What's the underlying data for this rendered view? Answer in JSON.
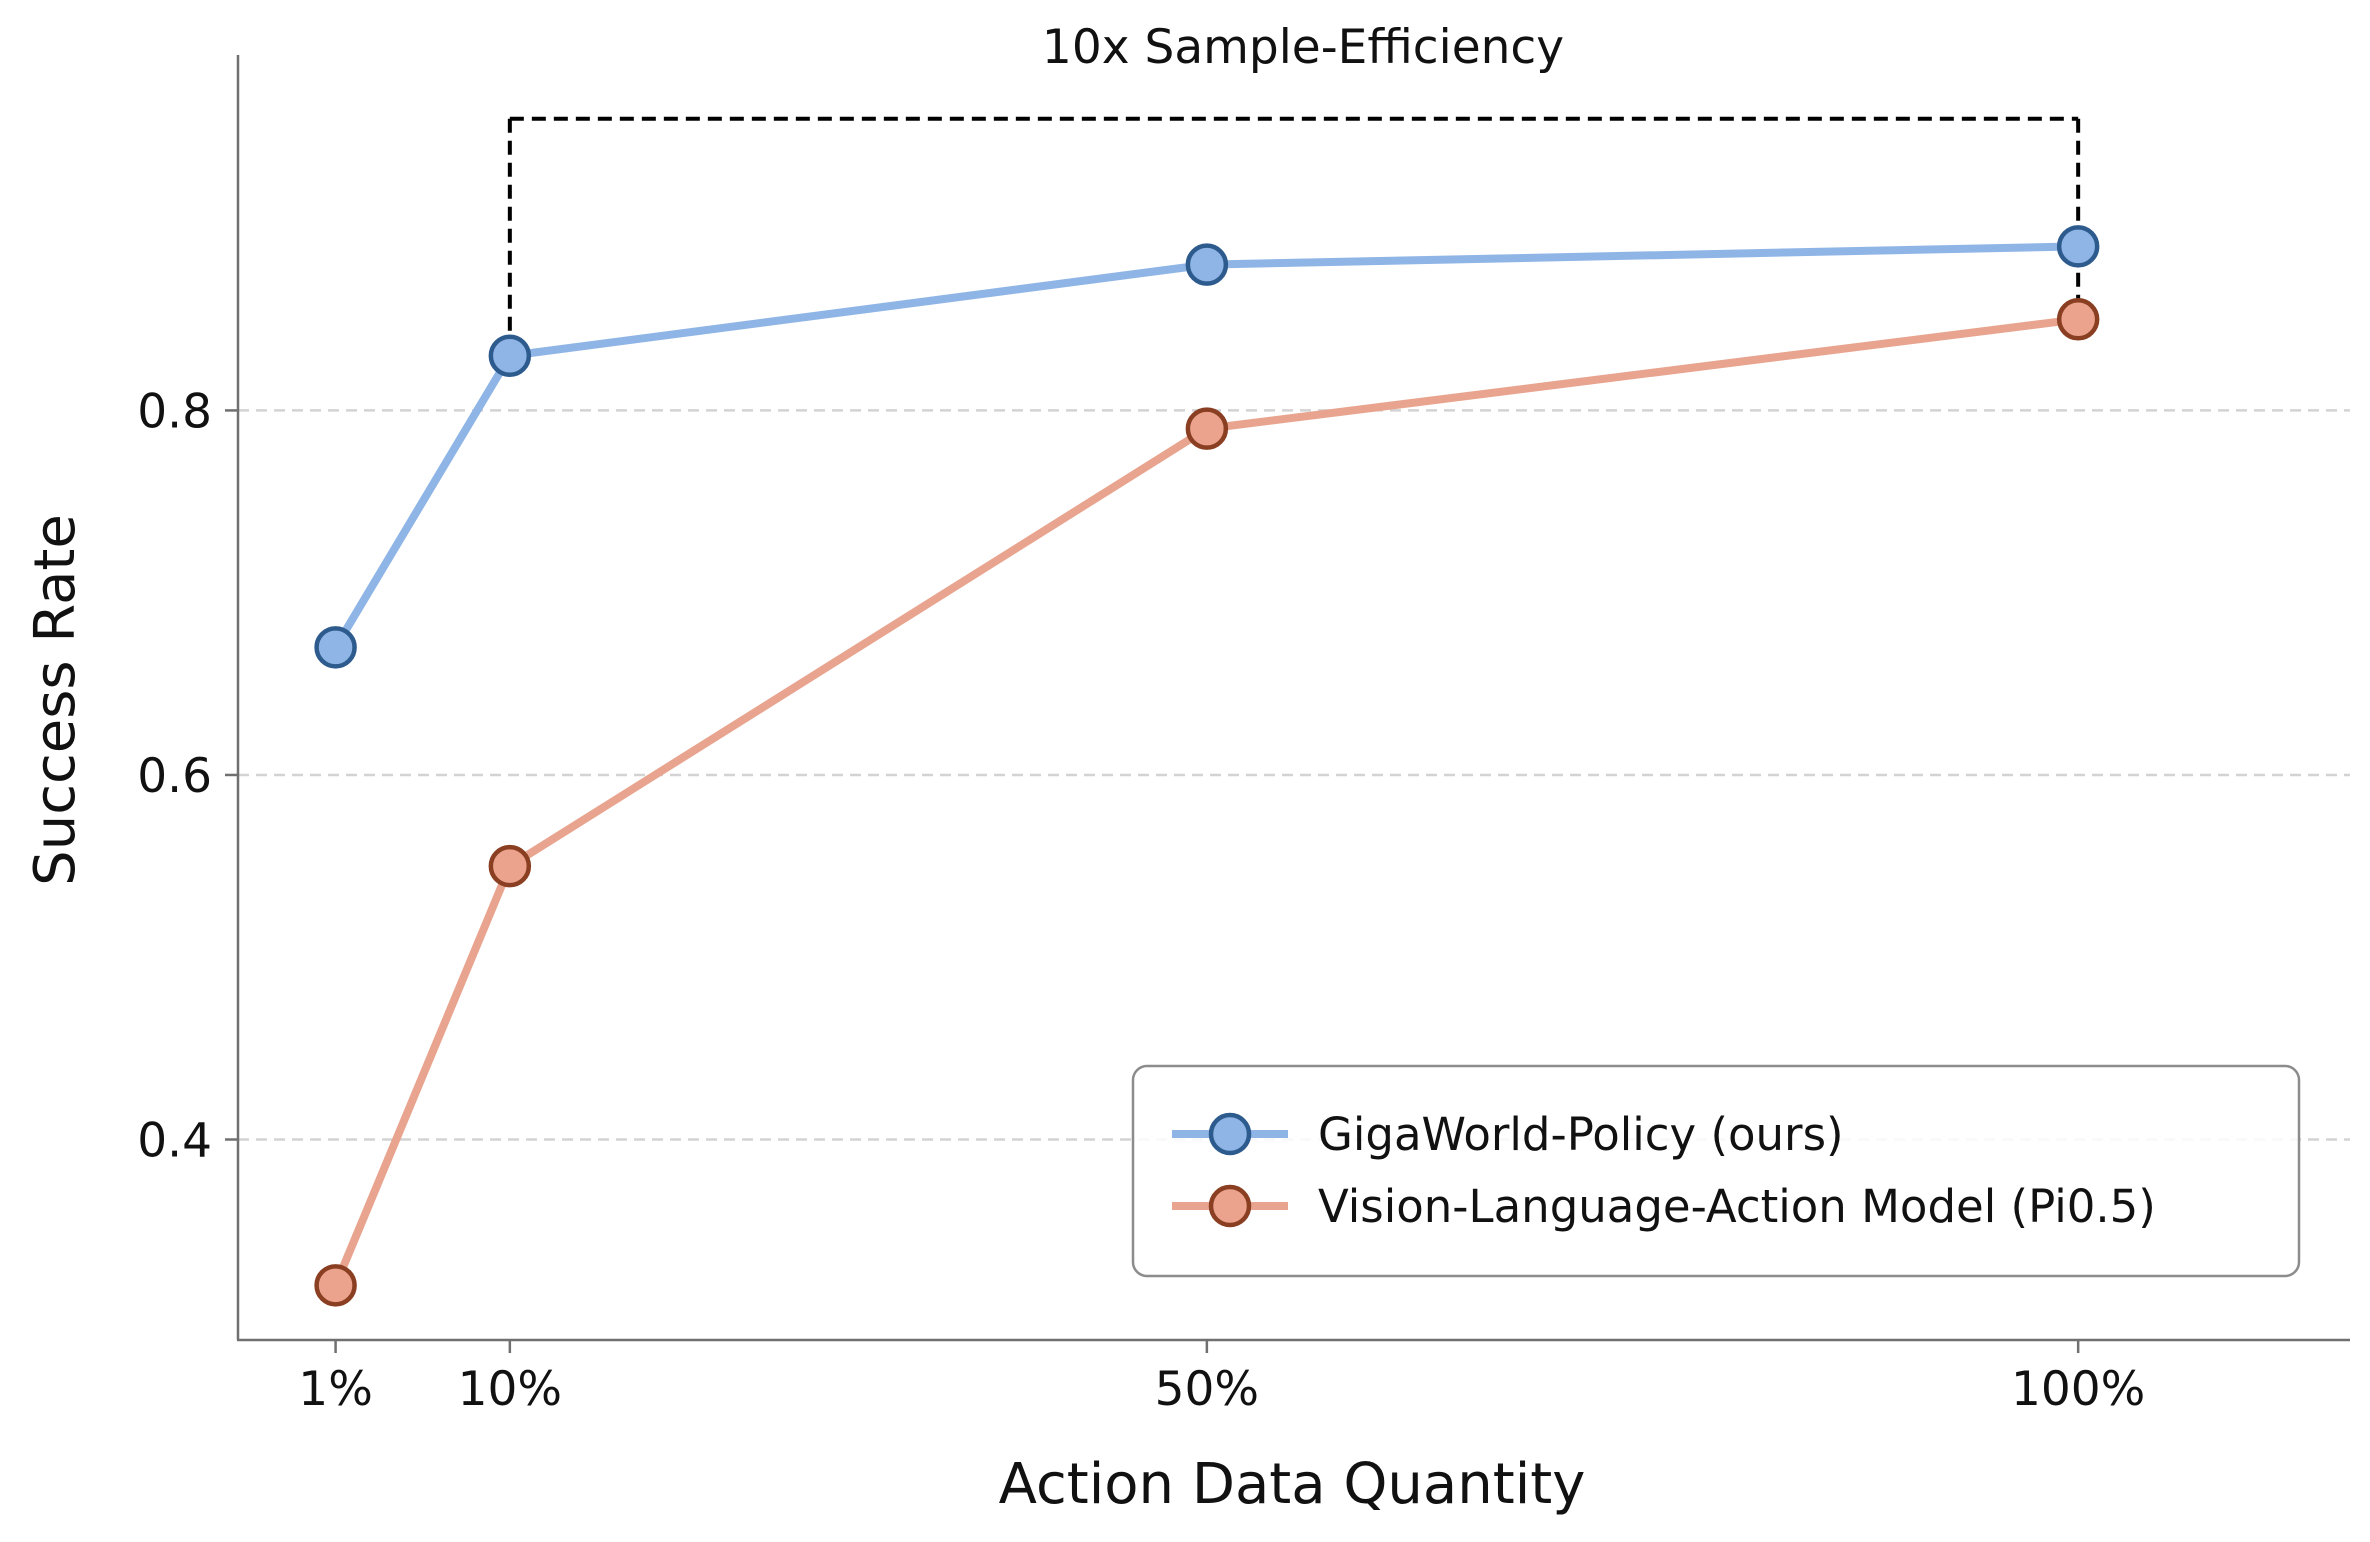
{
  "chart_data": {
    "type": "line",
    "title": "",
    "xlabel": "Action Data Quantity",
    "ylabel": "Success Rate",
    "x_ticks": [
      {
        "label": "1%",
        "pos": 0
      },
      {
        "label": "10%",
        "pos": 1
      },
      {
        "label": "50%",
        "pos": 5
      },
      {
        "label": "100%",
        "pos": 10
      }
    ],
    "y_ticks": [
      0.4,
      0.6,
      0.8
    ],
    "ylim": [
      0.29,
      0.995
    ],
    "xlim": [
      -0.56,
      11.56
    ],
    "grid": "horizontal dashed",
    "legend_position": "lower-right",
    "series": [
      {
        "name": "GigaWorld-Policy (ours)",
        "line_color": "#8fb5e6",
        "marker_face": "#8fb5e6",
        "marker_edge": "#2e5b8e",
        "points": [
          {
            "x": "1%",
            "y": 0.67
          },
          {
            "x": "10%",
            "y": 0.83
          },
          {
            "x": "50%",
            "y": 0.88
          },
          {
            "x": "100%",
            "y": 0.89
          }
        ]
      },
      {
        "name": "Vision-Language-Action Model (Pi0.5)",
        "line_color": "#e8a48e",
        "marker_face": "#eba38e",
        "marker_edge": "#8a3f22",
        "points": [
          {
            "x": "1%",
            "y": 0.32
          },
          {
            "x": "10%",
            "y": 0.55
          },
          {
            "x": "50%",
            "y": 0.79
          },
          {
            "x": "100%",
            "y": 0.85
          }
        ]
      }
    ],
    "annotation": {
      "text": "10x Sample-Efficiency",
      "from_x": "10%",
      "to_x": "100%",
      "bracket_y": 0.96,
      "style": "black dashed bracket"
    }
  }
}
